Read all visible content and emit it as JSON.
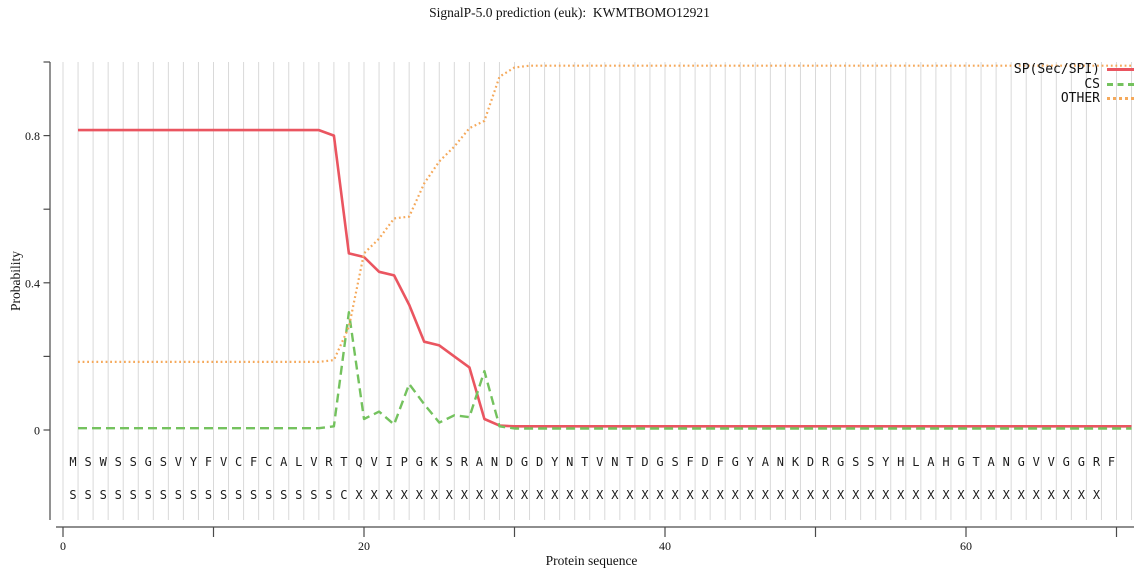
{
  "title": "SignalP-5.0 prediction (euk):  KWMTBOMO12921",
  "colors": {
    "sp": "#ea5560",
    "cs": "#74c25e",
    "other": "#f5a95b",
    "grid": "#d9d9d9",
    "axis": "#4a4a4a",
    "text": "#111111"
  },
  "legend": {
    "position": "top-right",
    "items": [
      {
        "label": "SP(Sec/SPI)",
        "series": "sp",
        "style": "solid"
      },
      {
        "label": "CS",
        "series": "cs",
        "style": "dashed"
      },
      {
        "label": "OTHER",
        "series": "other",
        "style": "dotted"
      }
    ]
  },
  "chart_data": {
    "type": "line",
    "title": "SignalP-5.0 prediction (euk):  KWMTBOMO12921",
    "xlabel": "Protein sequence",
    "ylabel": "Probability",
    "xlim": [
      0,
      71
    ],
    "ylim": [
      0,
      1.03
    ],
    "grid": "vertical line at every residue position",
    "legend_position": "top-right",
    "x_description": "x values are residue positions 1..70 of the protein sequence",
    "x_ticks": {
      "labeled": [
        0,
        20,
        40,
        60
      ],
      "minor": [
        10,
        30,
        50,
        70
      ]
    },
    "y_ticks": {
      "labeled": [
        0,
        0.4,
        0.8
      ],
      "minor": [
        0.2,
        0.6,
        1.0
      ]
    },
    "sequence": "MSWSSGSVYFVCFCALVRTQVIPGKSRANDGDYNTVNTDGSFDFGYANKDRGSSYHLAHGTANGVVGGRF",
    "sequence_marks": "SSSSSSSSSSSSSSSSSSCXXXXXXXXXXXXXXXXXXXXXXXXXXXXXXXXXXXXXXXXXXXXXXXXXX",
    "series": [
      {
        "name": "SP(Sec/SPI)",
        "key": "sp",
        "style": "solid",
        "values": [
          0.815,
          0.815,
          0.815,
          0.815,
          0.815,
          0.815,
          0.815,
          0.815,
          0.815,
          0.815,
          0.815,
          0.815,
          0.815,
          0.815,
          0.815,
          0.815,
          0.815,
          0.8,
          0.48,
          0.47,
          0.43,
          0.42,
          0.34,
          0.24,
          0.23,
          0.2,
          0.17,
          0.03,
          0.012,
          0.01,
          0.01,
          0.01,
          0.01,
          0.01,
          0.01,
          0.01,
          0.01,
          0.01,
          0.01,
          0.01,
          0.01,
          0.01,
          0.01,
          0.01,
          0.01,
          0.01,
          0.01,
          0.01,
          0.01,
          0.01,
          0.01,
          0.01,
          0.01,
          0.01,
          0.01,
          0.01,
          0.01,
          0.01,
          0.01,
          0.01,
          0.01,
          0.01,
          0.01,
          0.01,
          0.01,
          0.01,
          0.01,
          0.01,
          0.01,
          0.01
        ]
      },
      {
        "name": "CS",
        "key": "cs",
        "style": "dashed",
        "values": [
          0.005,
          0.005,
          0.005,
          0.005,
          0.005,
          0.005,
          0.005,
          0.005,
          0.005,
          0.005,
          0.005,
          0.005,
          0.005,
          0.005,
          0.005,
          0.005,
          0.005,
          0.01,
          0.32,
          0.03,
          0.05,
          0.015,
          0.125,
          0.07,
          0.02,
          0.04,
          0.035,
          0.16,
          0.01,
          0.004,
          0.004,
          0.004,
          0.004,
          0.004,
          0.004,
          0.004,
          0.004,
          0.004,
          0.004,
          0.004,
          0.004,
          0.004,
          0.004,
          0.004,
          0.004,
          0.004,
          0.004,
          0.004,
          0.004,
          0.004,
          0.004,
          0.004,
          0.004,
          0.004,
          0.004,
          0.004,
          0.004,
          0.004,
          0.004,
          0.004,
          0.004,
          0.004,
          0.004,
          0.004,
          0.004,
          0.004,
          0.004,
          0.004,
          0.004,
          0.004
        ]
      },
      {
        "name": "OTHER",
        "key": "other",
        "style": "dotted",
        "values": [
          0.185,
          0.185,
          0.185,
          0.185,
          0.185,
          0.185,
          0.185,
          0.185,
          0.185,
          0.185,
          0.185,
          0.185,
          0.185,
          0.185,
          0.185,
          0.185,
          0.185,
          0.19,
          0.28,
          0.48,
          0.52,
          0.575,
          0.58,
          0.67,
          0.73,
          0.77,
          0.82,
          0.84,
          0.96,
          0.985,
          0.99,
          0.99,
          0.99,
          0.99,
          0.99,
          0.99,
          0.99,
          0.99,
          0.99,
          0.99,
          0.99,
          0.99,
          0.99,
          0.99,
          0.99,
          0.99,
          0.99,
          0.99,
          0.99,
          0.99,
          0.99,
          0.99,
          0.99,
          0.99,
          0.99,
          0.99,
          0.99,
          0.99,
          0.99,
          0.99,
          0.99,
          0.99,
          0.99,
          0.99,
          0.99,
          0.99,
          0.99,
          0.99,
          0.99,
          0.99
        ]
      }
    ]
  }
}
